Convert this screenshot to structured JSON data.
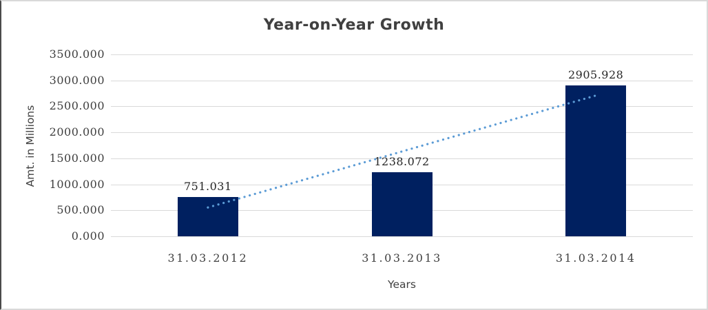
{
  "chart_data": {
    "type": "bar",
    "title": "Year-on-Year Growth",
    "categories": [
      "31.03.2012",
      "31.03.2013",
      "31.03.2014"
    ],
    "values": [
      751.031,
      1238.072,
      2905.928
    ],
    "data_labels": [
      "751.031",
      "1238.072",
      "2905.928"
    ],
    "xlabel": "Years",
    "ylabel": "Amt. in Millions",
    "ylim": [
      0,
      3500
    ],
    "ytick_step": 500,
    "ytick_labels": [
      "0.000",
      "500.000",
      "1000.000",
      "1500.000",
      "2000.000",
      "2500.000",
      "3000.000",
      "3500.000"
    ],
    "grid": true,
    "legend": "none",
    "trendline": {
      "type": "linear",
      "style": "dotted"
    },
    "colors": {
      "bar": "#002060",
      "trendline": "#5b9bd5",
      "gridline": "#d9d9d9",
      "text": "#3f3f3f",
      "title": "#404040"
    }
  }
}
